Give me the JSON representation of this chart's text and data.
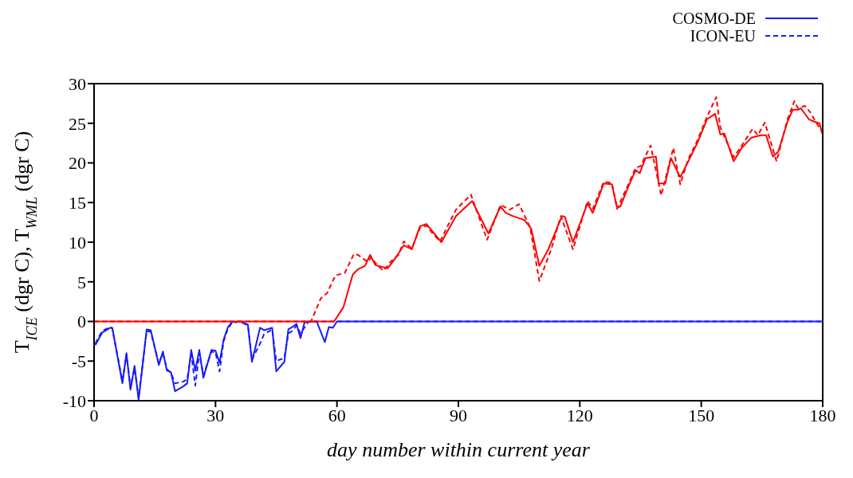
{
  "chart_data": {
    "type": "line",
    "xlabel": "day number within current year",
    "ylabel": "T$_{ICE}$ (dgr C), T$_{WML}$ (dgr C)",
    "xlim": [
      0,
      180
    ],
    "xticks": [
      0,
      30,
      60,
      90,
      120,
      150,
      180
    ],
    "ylim": [
      -10,
      30
    ],
    "yticks": [
      -10,
      -5,
      0,
      5,
      10,
      15,
      20,
      25,
      30
    ],
    "legend": "top right",
    "marker": "none",
    "series": [
      {
        "name": "COSMO-DE",
        "color": "#1a1aff",
        "line_style": "solid",
        "x": [
          0.3,
          2,
          4,
          4.5,
          7,
          8,
          9,
          10,
          11,
          13,
          14,
          16,
          17,
          18,
          19,
          20,
          22,
          23,
          24,
          25,
          26,
          27,
          29,
          30,
          31,
          32,
          33,
          34,
          36,
          38,
          39,
          41,
          42,
          44,
          45,
          47,
          48,
          49,
          50,
          51,
          52,
          55,
          57,
          58,
          59,
          60,
          180
        ],
        "values": [
          -3,
          -1.4,
          -0.8,
          -0.8,
          -7.8,
          -4,
          -8.6,
          -5.6,
          -9.9,
          -1,
          -1.1,
          -5.5,
          -3.8,
          -6.2,
          -6.4,
          -8.8,
          -8.2,
          -7.8,
          -3.6,
          -6.2,
          -3.6,
          -7.1,
          -3.6,
          -3.7,
          -5.2,
          -2.3,
          -0.8,
          -0.1,
          0,
          -0.4,
          -5.1,
          -0.8,
          -1.1,
          -0.8,
          -6.3,
          -5.1,
          -1,
          -0.7,
          -0.3,
          -2.1,
          -0.1,
          0,
          -2.6,
          -0.7,
          -0.8,
          0,
          0
        ]
      },
      {
        "name": "ICON-EU",
        "color": "#1a1aff",
        "line_style": "dashed",
        "x": [
          0.3,
          2,
          4,
          4.5,
          7,
          8,
          9,
          10,
          11,
          13,
          14,
          16,
          17,
          18,
          19,
          20,
          22,
          23,
          24,
          25,
          26,
          27,
          29,
          30,
          31,
          32,
          33,
          34,
          36,
          38,
          39,
          41,
          42,
          44,
          45,
          47,
          48,
          49,
          50,
          51,
          53,
          180
        ],
        "values": [
          -2.8,
          -1.2,
          -0.7,
          -0.9,
          -7.5,
          -4.2,
          -8.3,
          -5.9,
          -9.6,
          -1.2,
          -1.3,
          -5.3,
          -4,
          -6,
          -6.5,
          -7.8,
          -7.6,
          -7.3,
          -4,
          -8.1,
          -4,
          -6.8,
          -3.8,
          -3.9,
          -6.3,
          -2.5,
          -1,
          -0.2,
          0,
          -0.5,
          -4.8,
          -2.8,
          -1.6,
          -1,
          -5,
          -4.6,
          -1.5,
          -1.2,
          -0.5,
          -1.5,
          0,
          0
        ]
      },
      {
        "color": "#ff0000",
        "line_style": "solid",
        "x": [
          0,
          59.3,
          61.6,
          63.9,
          65.2,
          66.9,
          68.2,
          69.5,
          72.5,
          74.2,
          76.5,
          78.5,
          80.5,
          82.1,
          85.8,
          89.4,
          93.4,
          97.4,
          100.4,
          101.7,
          103.4,
          106.3,
          108,
          110,
          112.3,
          115.6,
          116.3,
          118.3,
          121.9,
          123.2,
          125.9,
          127.9,
          129.2,
          130,
          131.9,
          133.8,
          134.8,
          136.2,
          138.8,
          139.5,
          141.1,
          142.5,
          144.8,
          146.8,
          149.1,
          151.4,
          153.4,
          154.7,
          155.7,
          158,
          160,
          162.4,
          164.7,
          166,
          167.7,
          169,
          171.3,
          172.6,
          173.9,
          174.6,
          176.6,
          177.9,
          179.2,
          179.9
        ],
        "values": [
          0,
          0,
          1.8,
          5.9,
          6.6,
          7,
          8.4,
          7.1,
          6.7,
          7.8,
          9.6,
          9.1,
          12,
          12.3,
          10,
          13.3,
          15.2,
          11.1,
          14.5,
          13.7,
          13.3,
          12.8,
          11.7,
          7,
          9.2,
          13.3,
          13.2,
          10,
          14.9,
          13.7,
          17.4,
          17.3,
          14.4,
          14.5,
          16.9,
          19.1,
          18.7,
          20.6,
          20.8,
          17.4,
          17.4,
          20.6,
          18.2,
          20.2,
          22.6,
          25.5,
          26.2,
          23.6,
          23.7,
          20.2,
          21.9,
          23.2,
          23.5,
          23.5,
          20.8,
          21.4,
          25.2,
          26.7,
          26.7,
          26.9,
          25.5,
          25.2,
          25,
          23.7
        ]
      },
      {
        "color": "#ff0000",
        "line_style": "dashed",
        "x": [
          0,
          53.6,
          56,
          57.6,
          59.6,
          61.9,
          64.2,
          65.2,
          67.6,
          68.5,
          69.9,
          71.5,
          73.2,
          75.2,
          76.5,
          78.5,
          80.5,
          82.1,
          83.8,
          85.5,
          87.4,
          89.4,
          93.1,
          97.1,
          100.4,
          102.7,
          105,
          107.7,
          110,
          113,
          115.3,
          118.3,
          121.9,
          123.2,
          125.9,
          127.9,
          129.2,
          131.9,
          133.8,
          135,
          137.5,
          140.1,
          143.1,
          144.8,
          146.8,
          149.1,
          151.4,
          153.7,
          154.7,
          158,
          160,
          162.7,
          164,
          165.7,
          168.6,
          171.3,
          173,
          173.9,
          175.6,
          176.9,
          177.9,
          179.9
        ],
        "values": [
          0,
          0,
          2.9,
          3.6,
          5.8,
          6.1,
          8.5,
          8.4,
          7.5,
          8.1,
          7.1,
          6.4,
          7.5,
          8.4,
          10.1,
          9.2,
          11.8,
          12.1,
          11,
          10.1,
          12.1,
          14.1,
          16,
          10.3,
          14.7,
          14.1,
          14.8,
          11.9,
          5.1,
          9.2,
          13.3,
          9.1,
          15.2,
          14.2,
          17.6,
          17.5,
          14.2,
          17.2,
          19.4,
          19.6,
          22.2,
          15.9,
          21.9,
          17.3,
          20.5,
          22.9,
          25.8,
          28.3,
          24.5,
          20.7,
          22.2,
          24.3,
          23.5,
          25.1,
          20.2,
          25.5,
          27.8,
          26.9,
          27.2,
          26.4,
          25.5,
          23.9
        ]
      }
    ]
  }
}
